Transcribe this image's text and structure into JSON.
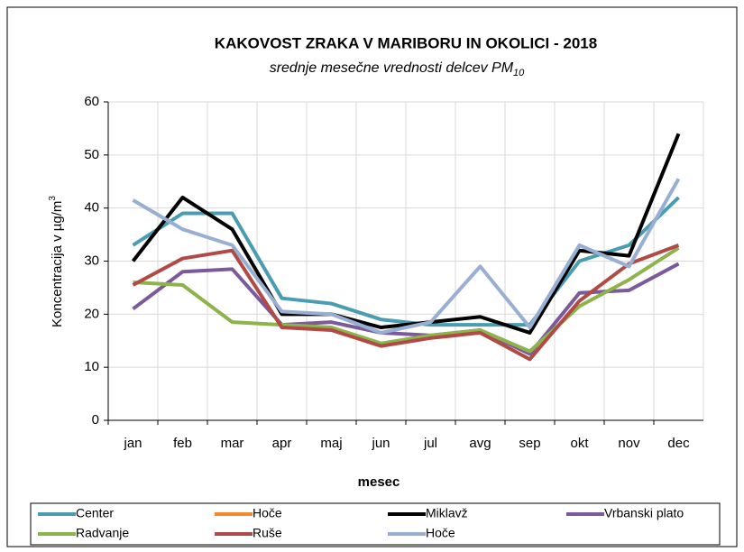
{
  "chart_data": {
    "type": "line",
    "title": "KAKOVOST ZRAKA V MARIBORU IN OKOLICI - 2018",
    "subtitle": {
      "text": "srednje mesečne vrednosti delcev PM",
      "subscript": "10"
    },
    "y_label": {
      "text": "Koncentracija v  µg/m",
      "superscript": "3"
    },
    "x_label": "mesec",
    "categories": [
      "jan",
      "feb",
      "mar",
      "apr",
      "maj",
      "jun",
      "jul",
      "avg",
      "sep",
      "okt",
      "nov",
      "dec"
    ],
    "series": [
      {
        "name": "Center",
        "color": "#4a9db0",
        "values": [
          33,
          39,
          39,
          23,
          22,
          19,
          18,
          18,
          18,
          30,
          33,
          42
        ]
      },
      {
        "name": "Hoče",
        "color": "#f28a30",
        "values": [
          null,
          null,
          null,
          null,
          null,
          null,
          null,
          null,
          null,
          null,
          null,
          null
        ]
      },
      {
        "name": "Miklavž",
        "color": "#000000",
        "values": [
          30,
          42,
          36,
          20,
          20,
          17.5,
          18.5,
          19.5,
          16.5,
          32,
          31,
          54
        ]
      },
      {
        "name": "Vrbanski plato",
        "color": "#7a5a9a",
        "values": [
          21,
          28,
          28.5,
          18,
          18.5,
          16.5,
          16,
          17,
          12.5,
          24,
          24.5,
          29.5
        ]
      },
      {
        "name": "Radvanje",
        "color": "#8db34a",
        "values": [
          26,
          25.5,
          18.5,
          18,
          17.5,
          14.5,
          16,
          17,
          13,
          21.5,
          26.5,
          32.5
        ]
      },
      {
        "name": "Ruše",
        "color": "#b04a46",
        "values": [
          25.5,
          30.5,
          32,
          17.5,
          17,
          14,
          15.5,
          16.5,
          11.5,
          22.5,
          29.5,
          33
        ]
      },
      {
        "name": "Hoče",
        "color": "#98aed2",
        "values": [
          41.5,
          36,
          33,
          20.5,
          20,
          16.5,
          18.5,
          29,
          17.5,
          33,
          29,
          45.5
        ]
      }
    ],
    "ylim": [
      0,
      60
    ],
    "yticks": [
      0,
      10,
      20,
      30,
      40,
      50,
      60
    ],
    "grid": true
  }
}
